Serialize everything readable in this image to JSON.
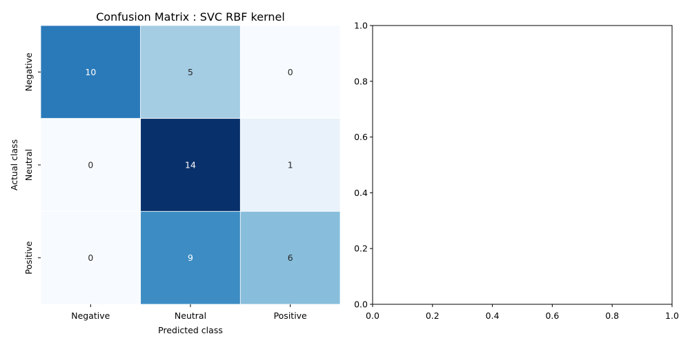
{
  "chart_data": [
    {
      "type": "heatmap",
      "title": "Confusion Matrix : SVC RBF kernel",
      "xlabel": "Predicted class",
      "ylabel": "Actual class",
      "x_categories": [
        "Negative",
        "Neutral",
        "Positive"
      ],
      "y_categories": [
        "Negative",
        "Neutral",
        "Positive"
      ],
      "values": [
        [
          10,
          5,
          0
        ],
        [
          0,
          14,
          1
        ],
        [
          0,
          9,
          6
        ]
      ],
      "colormap": "Blues",
      "annotations": true,
      "colorbar": false
    },
    {
      "type": "line",
      "title": "",
      "xlabel": "",
      "ylabel": "",
      "xlim": [
        0,
        1
      ],
      "ylim": [
        0,
        1
      ],
      "xticks": [
        "0.0",
        "0.2",
        "0.4",
        "0.6",
        "0.8",
        "1.0"
      ],
      "yticks": [
        "0.0",
        "0.2",
        "0.4",
        "0.6",
        "0.8",
        "1.0"
      ],
      "series": []
    }
  ]
}
